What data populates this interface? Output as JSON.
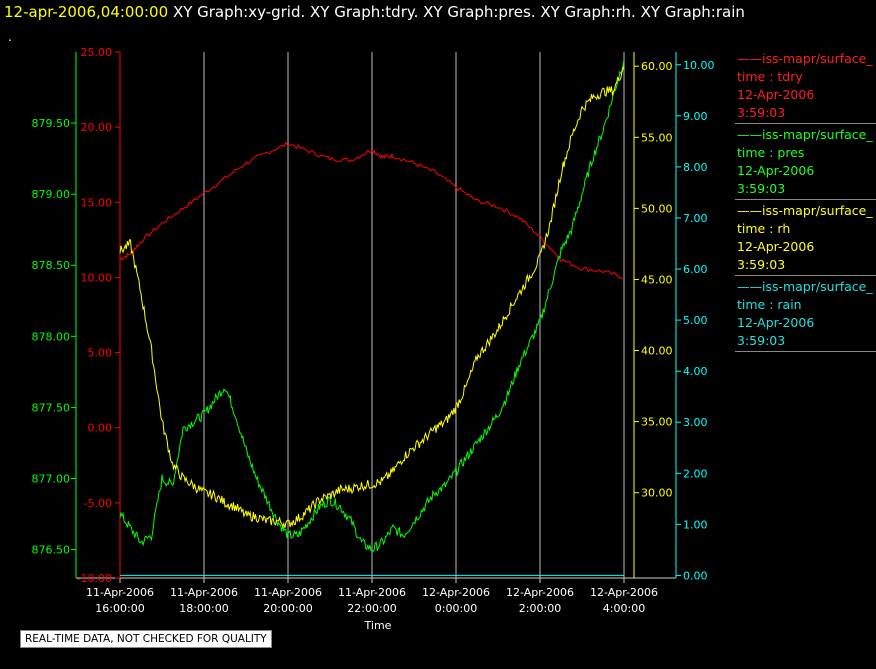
{
  "header": {
    "timestamp": "12-apr-2006,04:00:00",
    "titles": "XY Graph:xy-grid.  XY Graph:tdry.  XY Graph:pres.  XY Graph:rh.  XY Graph:rain"
  },
  "marker": ".",
  "notice": "REAL-TIME DATA, NOT CHECKED FOR QUALITY",
  "colors": {
    "tdry": "#ff0000",
    "pres": "#00ff00",
    "rh": "#ffff00",
    "rain": "#00ffff",
    "grid": "#bbbbbb"
  },
  "legend": [
    {
      "name": "iss-mapr/surface_",
      "var": "time : tdry",
      "date": "12-Apr-2006",
      "time": "3:59:03",
      "color": "#ff2020"
    },
    {
      "name": "iss-mapr/surface_",
      "var": "time : pres",
      "date": "12-Apr-2006",
      "time": "3:59:03",
      "color": "#20ff20"
    },
    {
      "name": "iss-mapr/surface_",
      "var": "time : rh",
      "date": "12-Apr-2006",
      "time": "3:59:03",
      "color": "#ffff20"
    },
    {
      "name": "iss-mapr/surface_",
      "var": "time : rain",
      "date": "12-Apr-2006",
      "time": "3:59:03",
      "color": "#20e0e0"
    }
  ],
  "chart_data": {
    "type": "line",
    "xlabel": "Time",
    "xlim": [
      16,
      28
    ],
    "x_ticks": [
      {
        "hour": 16,
        "date": "11-Apr-2006",
        "time": "16:00:00"
      },
      {
        "hour": 18,
        "date": "11-Apr-2006",
        "time": "18:00:00"
      },
      {
        "hour": 20,
        "date": "11-Apr-2006",
        "time": "20:00:00"
      },
      {
        "hour": 22,
        "date": "11-Apr-2006",
        "time": "22:00:00"
      },
      {
        "hour": 24,
        "date": "12-Apr-2006",
        "time": "0:00:00"
      },
      {
        "hour": 26,
        "date": "12-Apr-2006",
        "time": "2:00:00"
      },
      {
        "hour": 28,
        "date": "12-Apr-2006",
        "time": "4:00:00"
      }
    ],
    "grid": true,
    "axes": {
      "tdry": {
        "range": [
          -10,
          25
        ],
        "ticks": [
          "-10.00",
          "-5.00",
          "0.00",
          "5.00",
          "10.00",
          "15.00",
          "20.00",
          "25.00"
        ]
      },
      "pres": {
        "range": [
          876.3,
          880.0
        ],
        "ticks": [
          "876.50",
          "877.00",
          "877.50",
          "878.00",
          "878.50",
          "879.00",
          "879.50"
        ]
      },
      "rh": {
        "range": [
          24.0,
          61.0
        ],
        "ticks": [
          "30.00",
          "35.00",
          "40.00",
          "45.00",
          "50.00",
          "55.00",
          "60.00"
        ]
      },
      "rain": {
        "range": [
          -0.05,
          10.25
        ],
        "ticks": [
          "0.00",
          "1.00",
          "2.00",
          "3.00",
          "4.00",
          "5.00",
          "6.00",
          "7.00",
          "8.00",
          "9.00",
          "10.00"
        ]
      }
    },
    "series": [
      {
        "key": "tdry",
        "axis": "tdry",
        "x": [
          16,
          16.25,
          16.5,
          17,
          17.5,
          18,
          18.5,
          19,
          19.5,
          20,
          20.5,
          21,
          21.5,
          22,
          22.25,
          22.5,
          23,
          23.5,
          24,
          24.5,
          25,
          25.5,
          26,
          26.5,
          27,
          27.5,
          28
        ],
        "y": [
          11.2,
          11.6,
          12.4,
          13.6,
          14.6,
          15.6,
          16.6,
          17.6,
          18.3,
          18.9,
          18.4,
          17.9,
          17.8,
          18.5,
          18.0,
          18.1,
          17.6,
          17.0,
          16.0,
          15.1,
          14.7,
          14.0,
          12.7,
          11.2,
          10.6,
          10.4,
          10.0
        ]
      },
      {
        "key": "pres",
        "axis": "pres",
        "x": [
          16,
          16.25,
          16.5,
          16.75,
          17,
          17.25,
          17.5,
          17.75,
          18,
          18.25,
          18.5,
          18.75,
          19,
          19.25,
          19.5,
          19.75,
          20,
          20.25,
          20.5,
          20.75,
          21,
          21.25,
          21.5,
          21.75,
          22,
          22.25,
          22.5,
          22.75,
          23,
          23.25,
          23.5,
          23.75,
          24,
          24.25,
          24.5,
          24.75,
          25,
          25.25,
          25.5,
          25.75,
          26,
          26.25,
          26.5,
          26.75,
          27,
          27.25,
          27.5,
          27.75,
          28
        ],
        "y": [
          876.75,
          876.65,
          876.55,
          876.6,
          877.0,
          876.95,
          877.35,
          877.4,
          877.45,
          877.55,
          877.65,
          877.45,
          877.2,
          877.0,
          876.85,
          876.7,
          876.6,
          876.6,
          876.7,
          876.8,
          876.85,
          876.8,
          876.7,
          876.55,
          876.5,
          876.55,
          876.65,
          876.6,
          876.7,
          876.8,
          876.9,
          876.95,
          877.05,
          877.15,
          877.25,
          877.35,
          877.45,
          877.6,
          877.8,
          877.95,
          878.1,
          878.35,
          878.6,
          878.75,
          879.0,
          879.25,
          879.45,
          879.7,
          879.95
        ]
      },
      {
        "key": "rh",
        "axis": "rh",
        "x": [
          16,
          16.25,
          16.5,
          16.75,
          17,
          17.25,
          17.5,
          17.75,
          18,
          18.25,
          18.5,
          18.75,
          19,
          19.25,
          19.5,
          19.75,
          20,
          20.25,
          20.5,
          20.75,
          21,
          21.25,
          21.5,
          21.75,
          22,
          22.25,
          22.5,
          22.75,
          23,
          23.25,
          23.5,
          23.75,
          24,
          24.25,
          24.5,
          24.75,
          25,
          25.25,
          25.5,
          25.75,
          26,
          26.25,
          26.5,
          26.75,
          27,
          27.25,
          27.5,
          27.75,
          28
        ],
        "y": [
          47.0,
          47.5,
          44.0,
          40.0,
          35.0,
          32.0,
          31.0,
          30.5,
          30.0,
          29.8,
          29.3,
          29.0,
          28.4,
          28.3,
          28.0,
          28.0,
          27.8,
          28.2,
          28.8,
          29.5,
          29.8,
          30.2,
          30.3,
          30.5,
          30.6,
          30.8,
          31.5,
          32.5,
          33.2,
          33.8,
          34.5,
          35.0,
          36.0,
          37.5,
          39.5,
          40.5,
          41.5,
          42.8,
          44.0,
          45.2,
          46.5,
          49.0,
          52.5,
          55.0,
          57.0,
          57.8,
          58.2,
          58.3,
          60.0
        ]
      },
      {
        "key": "rain",
        "axis": "rain",
        "x": [
          16,
          28
        ],
        "y": [
          0.0,
          0.0
        ]
      }
    ]
  }
}
